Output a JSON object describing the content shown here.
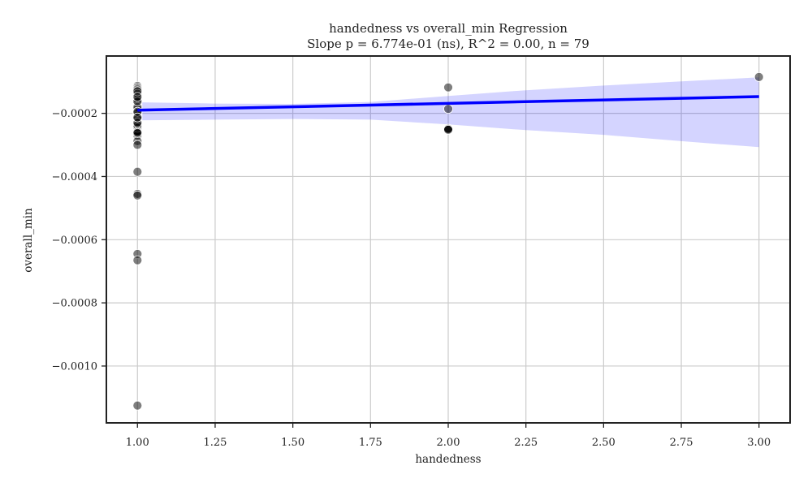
{
  "chart_data": {
    "type": "scatter",
    "title": "handedness vs overall_min Regression",
    "subtitle": "Slope p = 6.774e-01 (ns), R^2 = 0.00, n = 79",
    "xlabel": "handedness",
    "ylabel": "overall_min",
    "xlim": [
      0.9,
      3.1
    ],
    "ylim": [
      -0.00118,
      -1.85e-05
    ],
    "grid": true,
    "xticks": [
      1.0,
      1.25,
      1.5,
      1.75,
      2.0,
      2.25,
      2.5,
      2.75,
      3.0
    ],
    "xtick_labels": [
      "1.00",
      "1.25",
      "1.50",
      "1.75",
      "2.00",
      "2.25",
      "2.50",
      "2.75",
      "3.00"
    ],
    "yticks": [
      -0.001,
      -0.0008,
      -0.0006,
      -0.0004,
      -0.0002
    ],
    "ytick_labels": [
      "−0.0010",
      "−0.0008",
      "−0.0006",
      "−0.0004",
      "−0.0002"
    ],
    "points": [
      [
        1.0,
        -0.000113
      ],
      [
        1.0,
        -0.000118
      ],
      [
        1.0,
        -0.000126
      ],
      [
        1.0,
        -0.000128
      ],
      [
        1.0,
        -0.000132
      ],
      [
        1.0,
        -0.000136
      ],
      [
        1.0,
        -0.00014
      ],
      [
        1.0,
        -0.000146
      ],
      [
        1.0,
        -0.00015
      ],
      [
        1.0,
        -0.000153
      ],
      [
        1.0,
        -0.000157
      ],
      [
        1.0,
        -0.00016
      ],
      [
        1.0,
        -0.000164
      ],
      [
        1.0,
        -0.000168
      ],
      [
        1.0,
        -0.000172
      ],
      [
        1.0,
        -0.000175
      ],
      [
        1.0,
        -0.000178
      ],
      [
        1.0,
        -0.000182
      ],
      [
        1.0,
        -0.000185
      ],
      [
        1.0,
        -0.000188
      ],
      [
        1.0,
        -0.000191
      ],
      [
        1.0,
        -0.000194
      ],
      [
        1.0,
        -0.000197
      ],
      [
        1.0,
        -0.0002
      ],
      [
        1.0,
        -0.000203
      ],
      [
        1.0,
        -0.000206
      ],
      [
        1.0,
        -0.000209
      ],
      [
        1.0,
        -0.000212
      ],
      [
        1.0,
        -0.000215
      ],
      [
        1.0,
        -0.000218
      ],
      [
        1.0,
        -0.000221
      ],
      [
        1.0,
        -0.000224
      ],
      [
        1.0,
        -0.000228
      ],
      [
        1.0,
        -0.000232
      ],
      [
        1.0,
        -0.000236
      ],
      [
        1.0,
        -0.00024
      ],
      [
        1.0,
        -0.000244
      ],
      [
        1.0,
        -0.000248
      ],
      [
        1.0,
        -0.000252
      ],
      [
        1.0,
        -0.000256
      ],
      [
        1.0,
        -0.00026
      ],
      [
        1.0,
        -0.000265
      ],
      [
        1.0,
        -0.00027
      ],
      [
        1.0,
        -0.000288
      ],
      [
        1.0,
        -0.0003
      ],
      [
        1.0,
        -0.000123
      ],
      [
        1.0,
        -0.000143
      ],
      [
        1.0,
        -0.000166
      ],
      [
        1.0,
        -0.000186
      ],
      [
        1.0,
        -0.000207
      ],
      [
        1.0,
        -0.000226
      ],
      [
        1.0,
        -0.000246
      ],
      [
        1.0,
        -0.000138
      ],
      [
        1.0,
        -0.000155
      ],
      [
        1.0,
        -0.00018
      ],
      [
        1.0,
        -0.000199
      ],
      [
        1.0,
        -0.000217
      ],
      [
        1.0,
        -0.000238
      ],
      [
        1.0,
        -0.000258
      ],
      [
        1.0,
        -0.00013
      ],
      [
        1.0,
        -0.000162
      ],
      [
        1.0,
        -0.000195
      ],
      [
        1.0,
        -0.00023
      ],
      [
        1.0,
        -0.000262
      ],
      [
        1.0,
        -0.000148
      ],
      [
        1.0,
        -0.000213
      ],
      [
        1.0,
        -0.000385
      ],
      [
        1.0,
        -0.000455
      ],
      [
        1.0,
        -0.00046
      ],
      [
        1.0,
        -0.000645
      ],
      [
        1.0,
        -0.000665
      ],
      [
        1.0,
        -0.001125
      ],
      [
        2.0,
        -0.000118
      ],
      [
        2.0,
        -0.000186
      ],
      [
        2.0,
        -0.000249
      ],
      [
        2.0,
        -0.000251
      ],
      [
        2.0,
        -0.000249
      ],
      [
        2.0,
        -0.000252
      ],
      [
        3.0,
        -8.5e-05
      ]
    ],
    "regression_line": {
      "x": [
        1.0,
        3.0
      ],
      "y": [
        -0.00019,
        -0.000147
      ]
    },
    "confidence_band": {
      "x": [
        1.0,
        1.25,
        1.5,
        1.75,
        2.0,
        2.25,
        2.5,
        2.75,
        3.0
      ],
      "upper": [
        -0.000165,
        -0.000169,
        -0.00017,
        -0.000164,
        -0.000145,
        -0.000127,
        -0.000112,
        -9.9e-05,
        -8.6e-05
      ],
      "lower": [
        -0.000222,
        -0.00022,
        -0.000218,
        -0.00022,
        -0.000235,
        -0.000253,
        -0.000268,
        -0.000288,
        -0.000307
      ]
    },
    "colors": {
      "points": "#000000",
      "point_edge": "#ffffff",
      "regression_line": "#0000ff",
      "confidence_band": "#0000ff",
      "grid": "#cccccc",
      "axes": "#222222"
    }
  }
}
